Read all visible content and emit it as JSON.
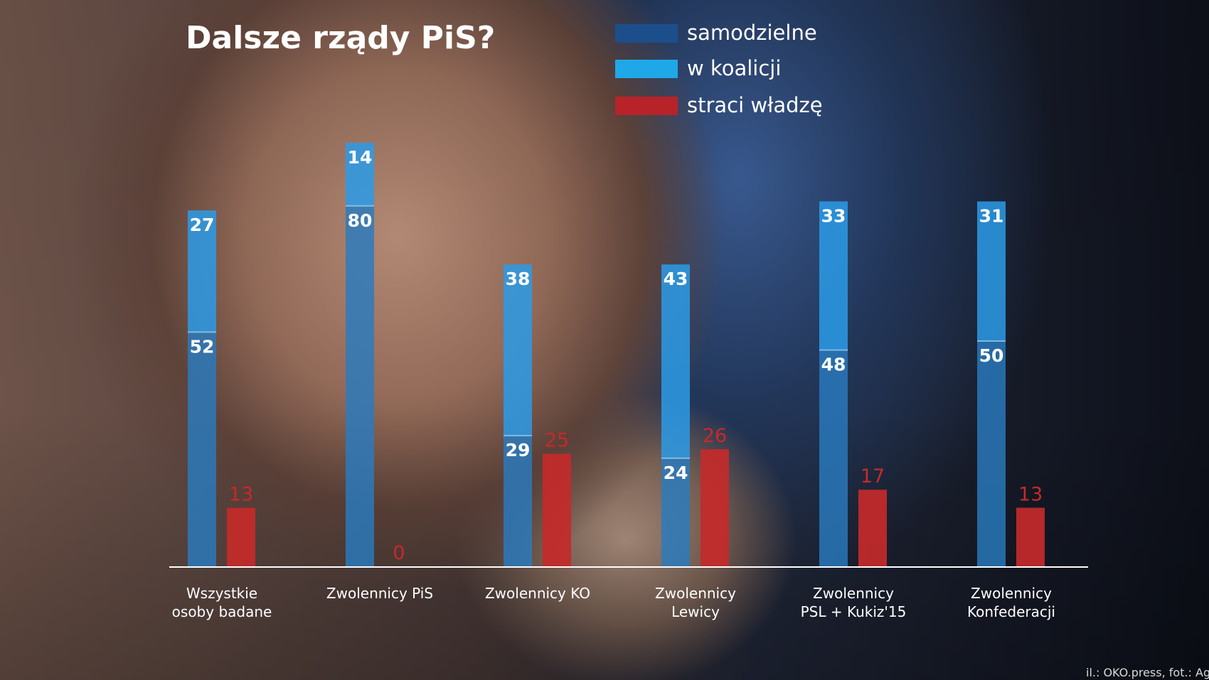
{
  "chart_data": {
    "type": "bar",
    "title": "Dalsze rządy PiS?",
    "categories": [
      [
        "Wszystkie",
        "osoby badane"
      ],
      [
        "Zwolennicy PiS"
      ],
      [
        "Zwolennicy KO"
      ],
      [
        "Zwolennicy",
        "Lewicy"
      ],
      [
        "Zwolennicy",
        "PSL + Kukiz'15"
      ],
      [
        "Zwolennicy",
        "Konfederacji"
      ]
    ],
    "series": [
      {
        "name": "samodzielne",
        "values": [
          52,
          80,
          29,
          24,
          48,
          50
        ],
        "color": "#2a7bbf",
        "stack": "pis"
      },
      {
        "name": "w koalicji",
        "values": [
          27,
          14,
          38,
          43,
          33,
          31
        ],
        "color": "#2b9be8",
        "stack": "pis"
      },
      {
        "name": "straci władzę",
        "values": [
          13,
          0,
          25,
          26,
          17,
          13
        ],
        "color": "#c42a2a",
        "stack": "loss"
      }
    ],
    "legend_colors": [
      "#1d4e8c",
      "#1fa8e8",
      "#b8232a"
    ],
    "legend_position": "top",
    "ylim": [
      0,
      100
    ],
    "grid": false
  },
  "credit": "il.: OKO.press, fot.: Ag"
}
